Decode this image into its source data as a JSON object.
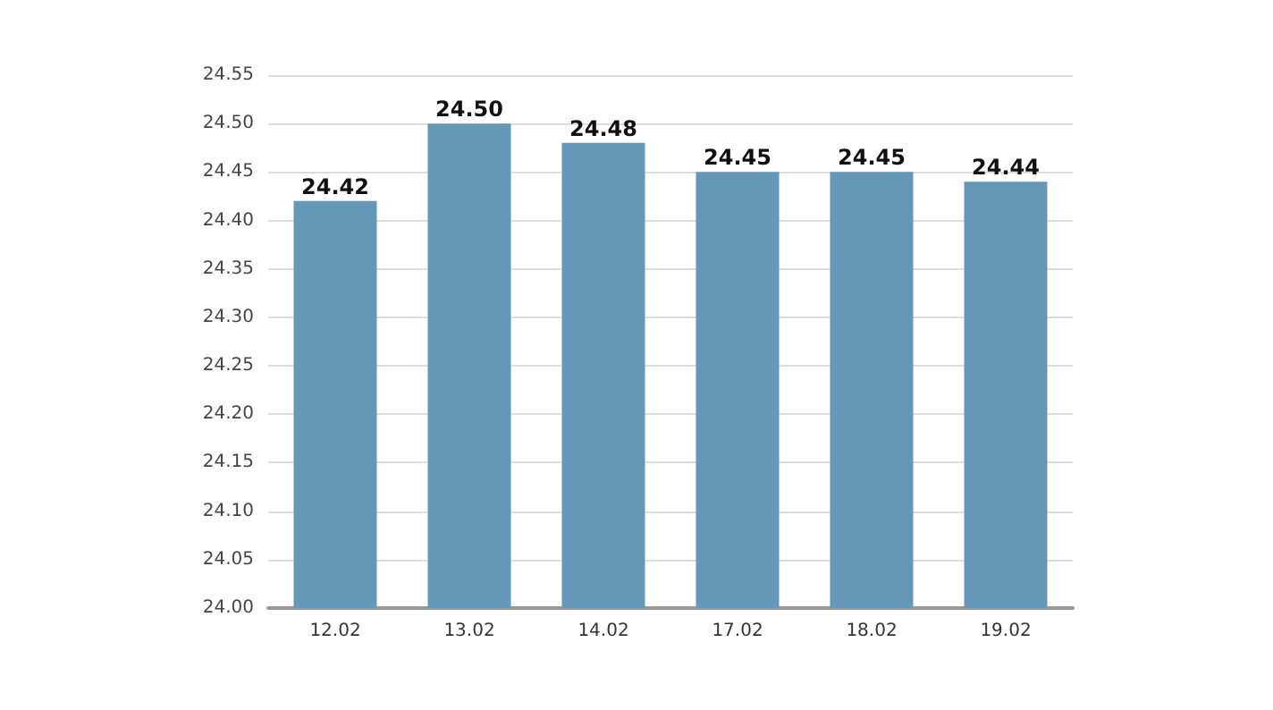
{
  "chart_data": {
    "type": "bar",
    "categories": [
      "12.02",
      "13.02",
      "14.02",
      "17.02",
      "18.02",
      "19.02"
    ],
    "values": [
      24.42,
      24.5,
      24.48,
      24.45,
      24.45,
      24.44
    ],
    "value_labels": [
      "24.42",
      "24.50",
      "24.48",
      "24.45",
      "24.45",
      "24.44"
    ],
    "color": "#6597b9",
    "ylim": [
      24,
      24.55
    ],
    "yticks": [
      {
        "value": 24,
        "label": "24.00"
      },
      {
        "value": 24.05,
        "label": "24.05"
      },
      {
        "value": 24.1,
        "label": "24.10"
      },
      {
        "value": 24.15,
        "label": "24.15"
      },
      {
        "value": 24.2,
        "label": "24.20"
      },
      {
        "value": 24.25,
        "label": "24.25"
      },
      {
        "value": 24.3,
        "label": "24.30"
      },
      {
        "value": 24.35,
        "label": "24.35"
      },
      {
        "value": 24.4,
        "label": "24.40"
      },
      {
        "value": 24.45,
        "label": "24.45"
      },
      {
        "value": 24.5,
        "label": "24.50"
      },
      {
        "value": 24.55,
        "label": "24.55"
      }
    ],
    "grid": "y"
  }
}
